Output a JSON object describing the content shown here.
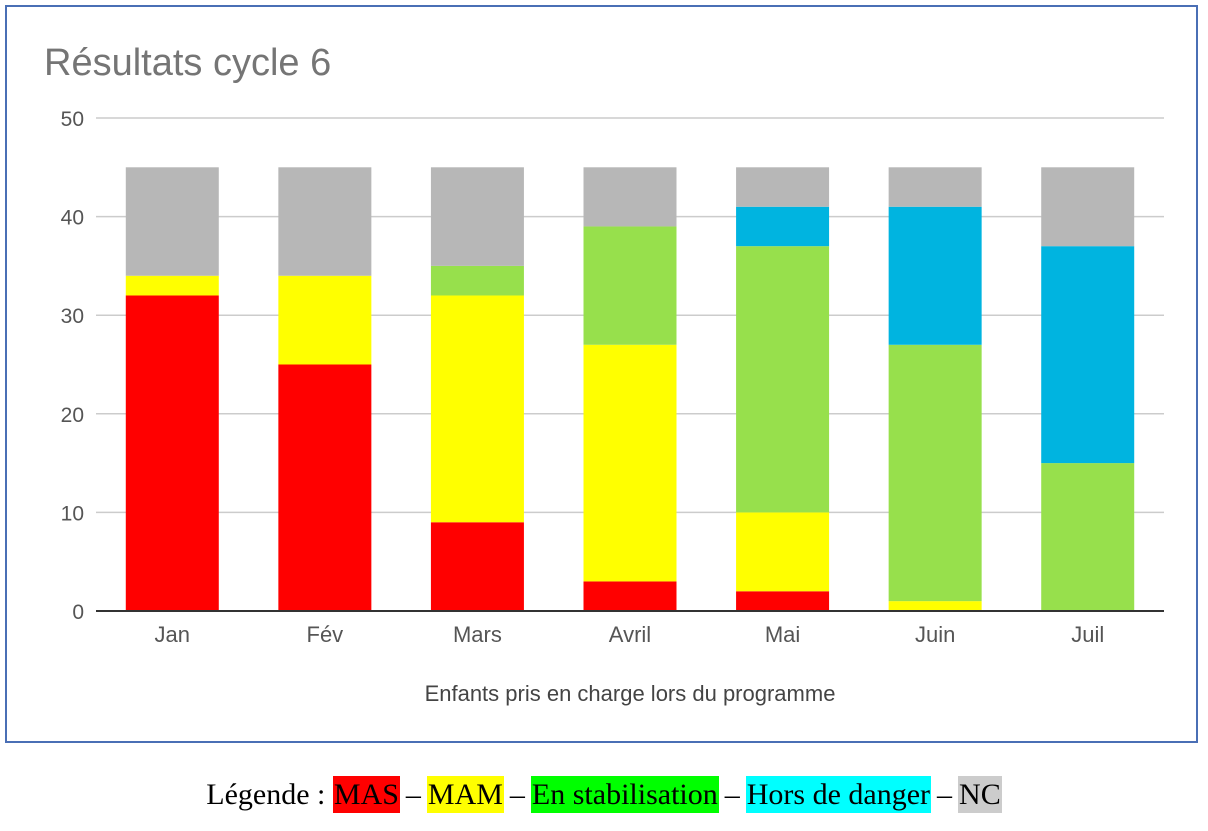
{
  "chart_data": {
    "type": "bar",
    "stacked": true,
    "title": "Résultats cycle 6",
    "xlabel": "Enfants pris en charge lors du programme",
    "ylabel": "",
    "ylim": [
      0,
      50
    ],
    "yticks": [
      0,
      10,
      20,
      30,
      40,
      50
    ],
    "grid": true,
    "categories": [
      "Jan",
      "Fév",
      "Mars",
      "Avril",
      "Mai",
      "Juin",
      "Juil"
    ],
    "series": [
      {
        "name": "MAS",
        "color": "#ff0000",
        "values": [
          32,
          25,
          9,
          3,
          2,
          0,
          0
        ]
      },
      {
        "name": "MAM",
        "color": "#ffff00",
        "values": [
          2,
          9,
          23,
          24,
          8,
          1,
          0
        ]
      },
      {
        "name": "En stabilisation",
        "color": "#97e04c",
        "values": [
          0,
          0,
          3,
          12,
          27,
          26,
          15
        ]
      },
      {
        "name": "Hors de danger",
        "color": "#00b4e0",
        "values": [
          0,
          0,
          0,
          0,
          4,
          14,
          22
        ]
      },
      {
        "name": "NC",
        "color": "#b7b7b7",
        "values": [
          11,
          11,
          10,
          6,
          4,
          4,
          8
        ]
      }
    ]
  },
  "legend": {
    "prefix": "Légende :",
    "separator": "–",
    "items": [
      {
        "label": "MAS",
        "color": "#ff0000"
      },
      {
        "label": "MAM",
        "color": "#ffff00"
      },
      {
        "label": "En stabilisation",
        "color": "#00ff00"
      },
      {
        "label": "Hors de danger",
        "color": "#00ffff"
      },
      {
        "label": "NC",
        "color": "#cccccc"
      }
    ]
  }
}
